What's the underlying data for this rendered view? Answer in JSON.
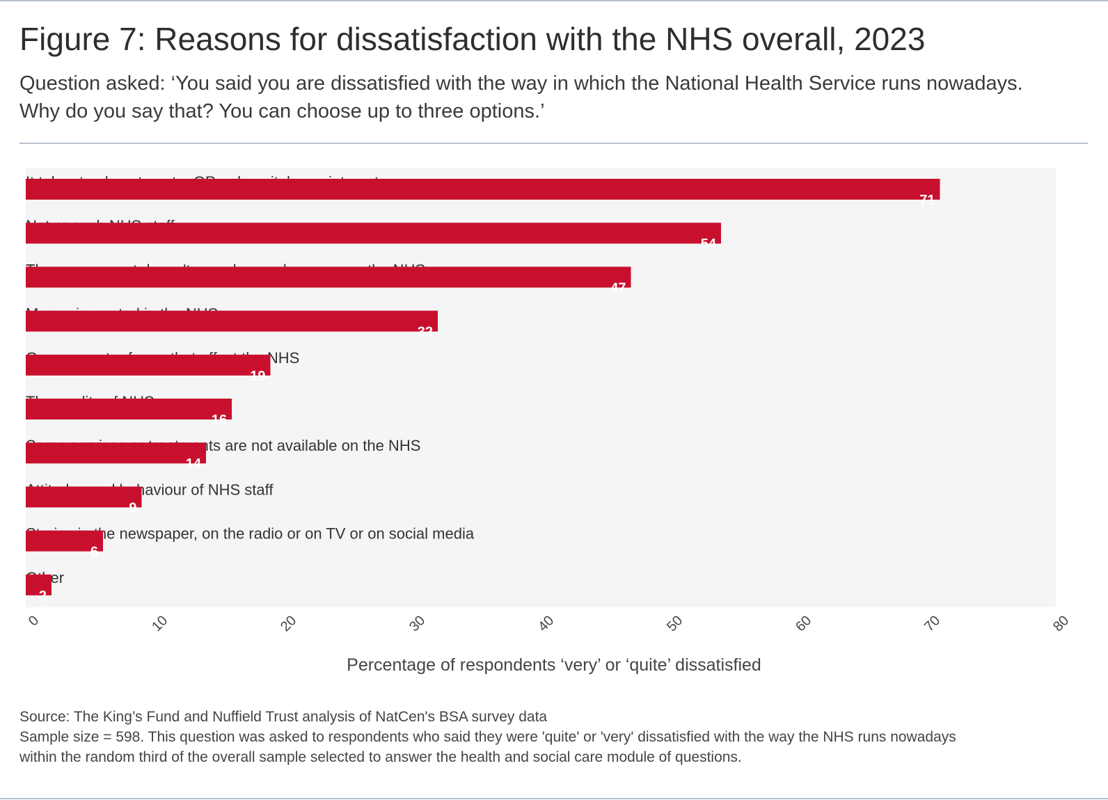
{
  "title": "Figure 7: Reasons for dissatisfaction with the NHS overall, 2023",
  "subtitle": "Question asked: ‘You said you are dissatisfied with the way in which the National Health Service runs nowadays. Why do you say that? You can choose up to three options.’",
  "colors": {
    "bar": "#c8102e",
    "plot_background": "#f5f5f5"
  },
  "chart_data": {
    "type": "bar",
    "orientation": "horizontal",
    "categories": [
      "It takes too long to get a GP or hospital appointment",
      "Not enough NHS staff",
      "The government doesn't spend enough money on the NHS",
      "Money is wasted in the NHS",
      "Government reforms that affect the NHS",
      "The quality of NHS care",
      "Some services or treatments are not available on the NHS",
      "Attitudes and behaviour of NHS staff",
      "Stories in the newspaper, on the radio or on TV or on social media",
      "Other"
    ],
    "values": [
      71,
      54,
      47,
      32,
      19,
      16,
      14,
      9,
      6,
      2
    ],
    "xlim": [
      0,
      80
    ],
    "xticks": [
      0,
      10,
      20,
      30,
      40,
      50,
      60,
      70,
      80
    ],
    "xlabel": "Percentage of respondents ‘very’ or ‘quite’ dissatisfied",
    "ylabel": "",
    "grid": false,
    "data_labels": true
  },
  "notes": {
    "source": "Source: The King’s Fund and Nuffield Trust analysis of NatCen's BSA survey data",
    "sample_line1": "Sample size = 598. This question was asked to respondents who said they were 'quite' or 'very' dissatisfied with the way the NHS runs nowadays",
    "sample_line2": "within the random third of the overall sample selected to answer the health and social care module of questions."
  }
}
